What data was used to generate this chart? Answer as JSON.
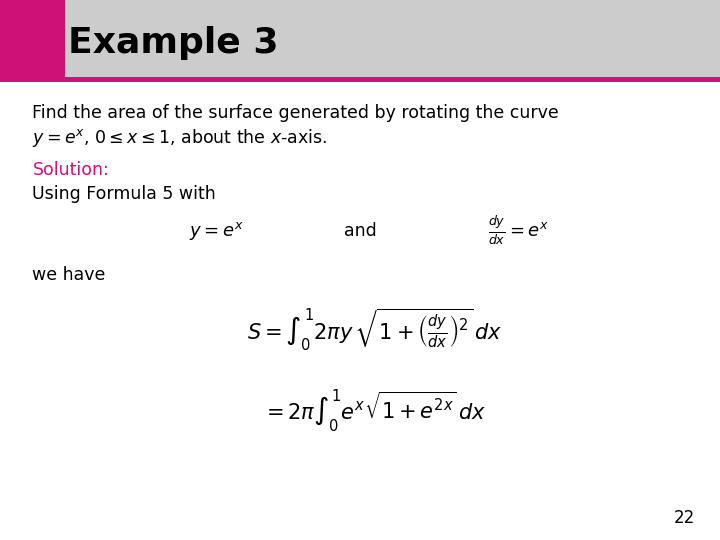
{
  "title": "Example 3",
  "title_bg_color": "#cccccc",
  "title_accent_color": "#cc1177",
  "title_font_size": 26,
  "background_color": "#ffffff",
  "text_color": "#000000",
  "solution_color": "#cc1177",
  "page_number": "22",
  "body_text_line1": "Find the area of the surface generated by rotating the curve",
  "body_text_line2_plain": ", 0 ≤ x ≤ 1, about the ",
  "solution_label": "Solution:",
  "formula_label": "Using Formula 5 with",
  "and_text": "and",
  "we_have": "we have",
  "eq1_math": "$y = e^x$",
  "eq2_math": "$\\frac{dy}{dx} = e^x$",
  "formula1_math": "$S = \\int_0^1 2\\pi y \\, \\sqrt{1 + \\left(\\frac{dy}{dx}\\right)^2} \\, dx$",
  "formula2_math": "$= 2\\pi \\int_0^1 e^x \\sqrt{1 + e^{2x}} \\, dx$"
}
